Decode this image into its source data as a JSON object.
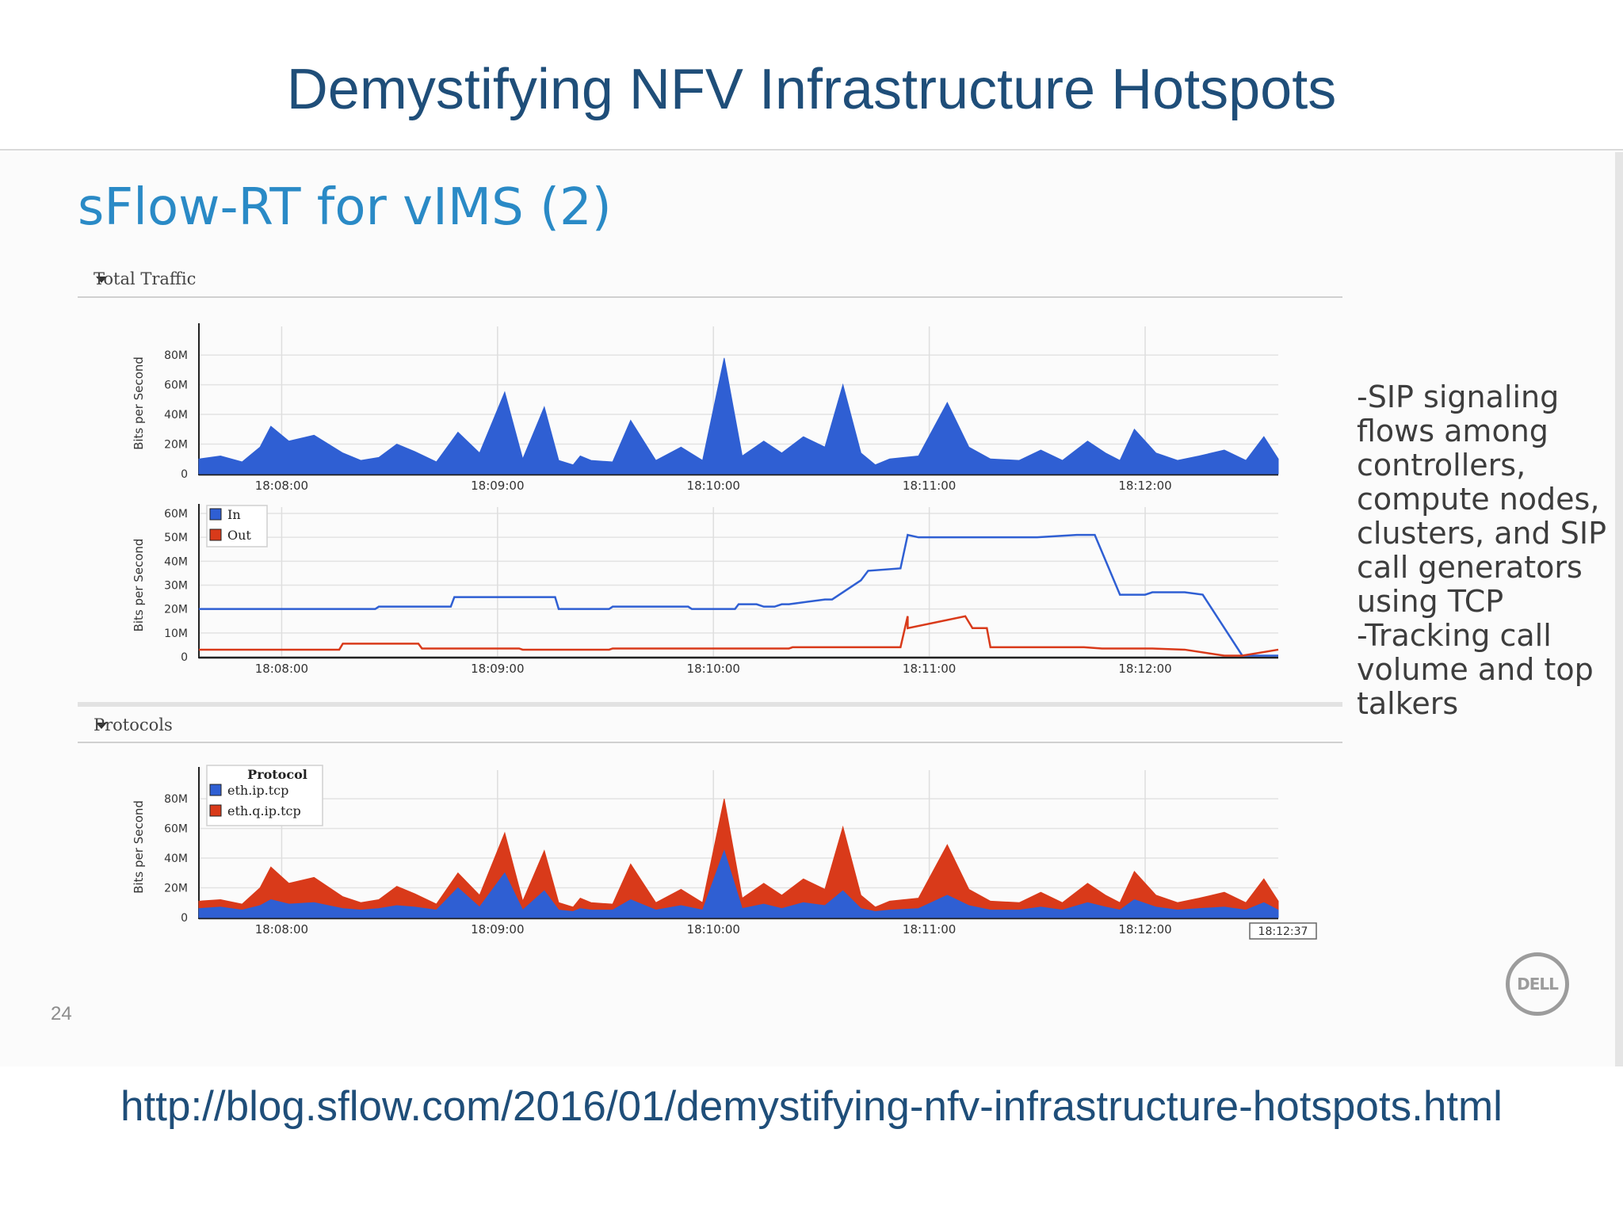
{
  "slide": {
    "title": "Demystifying NFV Infrastructure Hotspots",
    "subtitle": "sFlow-RT for vIMS (2)",
    "page_number": "24",
    "logo_text": "DELL",
    "url": "http://blog.sflow.com/2016/01/demystifying-nfv-infrastructure-hotspots.html",
    "bullets": [
      "-SIP signaling flows among controllers, compute nodes, clusters, and SIP call generators using TCP",
      "-Tracking call volume and top talkers"
    ],
    "sections": {
      "total_traffic": "Total Traffic",
      "protocols": "Protocols"
    },
    "colors": {
      "title": "#1f4e79",
      "subtitle": "#2a8ac6",
      "blue": "#2f5fd3",
      "red": "#d93a1a"
    }
  },
  "chart_data": [
    {
      "type": "area",
      "section": "Total Traffic",
      "ylabel": "Bits per Second",
      "x_range": [
        "18:07:37",
        "18:12:37"
      ],
      "xticks": [
        "18:08:00",
        "18:09:00",
        "18:10:00",
        "18:11:00",
        "18:12:00"
      ],
      "xticks_seconds": [
        23,
        83,
        143,
        203,
        263
      ],
      "yticks": [
        "0",
        "20M",
        "40M",
        "60M",
        "80M"
      ],
      "ylim": [
        0,
        95
      ],
      "y_units": "Mbit/s",
      "x_seconds": [
        0,
        6,
        12,
        17,
        20,
        25,
        32,
        40,
        45,
        50,
        55,
        60,
        66,
        72,
        78,
        85,
        90,
        96,
        100,
        104,
        106,
        109,
        115,
        120,
        127,
        134,
        140,
        146,
        151,
        157,
        162,
        168,
        174,
        179,
        184,
        188,
        192,
        200,
        208,
        214,
        220,
        228,
        234,
        240,
        247,
        252,
        256,
        260,
        266,
        272,
        278,
        285,
        291,
        296,
        300
      ],
      "series": [
        {
          "name": "",
          "color": "#2f5fd3",
          "values": [
            10,
            12,
            8,
            18,
            32,
            22,
            26,
            14,
            9,
            11,
            20,
            15,
            8,
            28,
            14,
            55,
            10,
            45,
            9,
            6,
            12,
            9,
            8,
            36,
            9,
            18,
            9,
            78,
            12,
            22,
            14,
            25,
            18,
            60,
            14,
            6,
            10,
            12,
            48,
            18,
            10,
            9,
            16,
            9,
            22,
            14,
            9,
            30,
            14,
            9,
            12,
            16,
            9,
            25,
            10
          ]
        }
      ]
    },
    {
      "type": "line",
      "section": "Total Traffic",
      "ylabel": "Bits per Second",
      "x_range": [
        "18:07:37",
        "18:12:37"
      ],
      "xticks": [
        "18:08:00",
        "18:09:00",
        "18:10:00",
        "18:11:00",
        "18:12:00"
      ],
      "xticks_seconds": [
        23,
        83,
        143,
        203,
        263
      ],
      "yticks": [
        "0",
        "10M",
        "20M",
        "30M",
        "40M",
        "50M",
        "60M"
      ],
      "ylim": [
        0,
        60
      ],
      "y_units": "Mbit/s",
      "legend": [
        "In",
        "Out"
      ],
      "series": [
        {
          "name": "In",
          "color": "#2f5fd3",
          "x": [
            0,
            49,
            50,
            70,
            71,
            99,
            100,
            114,
            115,
            136,
            137,
            149,
            150,
            155,
            157,
            160,
            162,
            164,
            174,
            176,
            184,
            186,
            195,
            197,
            200,
            233,
            244,
            249,
            256,
            260,
            263,
            265,
            274,
            279,
            290,
            300
          ],
          "values": [
            20,
            20,
            21,
            21,
            25,
            25,
            20,
            20,
            21,
            21,
            20,
            20,
            22,
            22,
            21,
            21,
            22,
            22,
            24,
            24,
            32,
            36,
            37,
            51,
            50,
            50,
            51,
            51,
            26,
            26,
            26,
            27,
            27,
            26,
            0.5,
            0.5
          ]
        },
        {
          "name": "Out",
          "color": "#d93a1a",
          "x": [
            0,
            39,
            40,
            61,
            62,
            89,
            90,
            114,
            115,
            140,
            142,
            164,
            165,
            195,
            197,
            213,
            215,
            197,
            219,
            220,
            246,
            251,
            265,
            274,
            285,
            290,
            300
          ],
          "values": [
            3,
            3,
            5.5,
            5.5,
            3.5,
            3.5,
            3,
            3,
            3.5,
            3.5,
            3.5,
            3.5,
            4,
            4,
            17,
            17,
            12,
            12,
            12,
            4,
            4,
            3.5,
            3.5,
            3,
            0.5,
            0.5,
            3
          ]
        }
      ]
    },
    {
      "type": "area",
      "stacked": true,
      "section": "Protocols",
      "ylabel": "Bits per Second",
      "x_range": [
        "18:07:37",
        "18:12:37"
      ],
      "xticks": [
        "18:08:00",
        "18:09:00",
        "18:10:00",
        "18:11:00",
        "18:12:00"
      ],
      "xticks_seconds": [
        23,
        83,
        143,
        203,
        263
      ],
      "end_label": "18:12:37",
      "yticks": [
        "0",
        "20M",
        "40M",
        "60M",
        "80M"
      ],
      "ylim": [
        0,
        95
      ],
      "y_units": "Mbit/s",
      "legend_title": "Protocol",
      "legend": [
        "eth.ip.tcp",
        "eth.q.ip.tcp"
      ],
      "x_seconds": [
        0,
        6,
        12,
        17,
        20,
        25,
        32,
        40,
        45,
        50,
        55,
        60,
        66,
        72,
        78,
        85,
        90,
        96,
        100,
        104,
        106,
        109,
        115,
        120,
        127,
        134,
        140,
        146,
        151,
        157,
        162,
        168,
        174,
        179,
        184,
        188,
        192,
        200,
        208,
        214,
        220,
        228,
        234,
        240,
        247,
        252,
        256,
        260,
        266,
        272,
        278,
        285,
        291,
        296,
        300
      ],
      "series": [
        {
          "name": "eth.ip.tcp",
          "color": "#2f5fd3",
          "values": [
            6,
            7,
            5,
            8,
            12,
            9,
            10,
            6,
            5,
            6,
            8,
            7,
            5,
            20,
            7,
            30,
            5,
            18,
            5,
            4,
            6,
            5,
            5,
            12,
            5,
            8,
            5,
            45,
            6,
            9,
            6,
            10,
            8,
            18,
            6,
            4,
            5,
            6,
            15,
            8,
            5,
            5,
            7,
            5,
            10,
            7,
            5,
            12,
            7,
            5,
            6,
            7,
            5,
            10,
            5
          ]
        },
        {
          "name": "eth.q.ip.tcp",
          "color": "#d93a1a",
          "values": [
            5,
            5,
            4,
            12,
            22,
            14,
            17,
            8,
            5,
            6,
            13,
            9,
            4,
            10,
            8,
            27,
            6,
            27,
            5,
            3,
            7,
            5,
            4,
            24,
            5,
            11,
            5,
            35,
            7,
            14,
            9,
            16,
            11,
            43,
            9,
            3,
            6,
            7,
            34,
            11,
            6,
            5,
            10,
            5,
            13,
            8,
            5,
            19,
            8,
            5,
            7,
            10,
            5,
            16,
            6
          ]
        }
      ]
    }
  ]
}
